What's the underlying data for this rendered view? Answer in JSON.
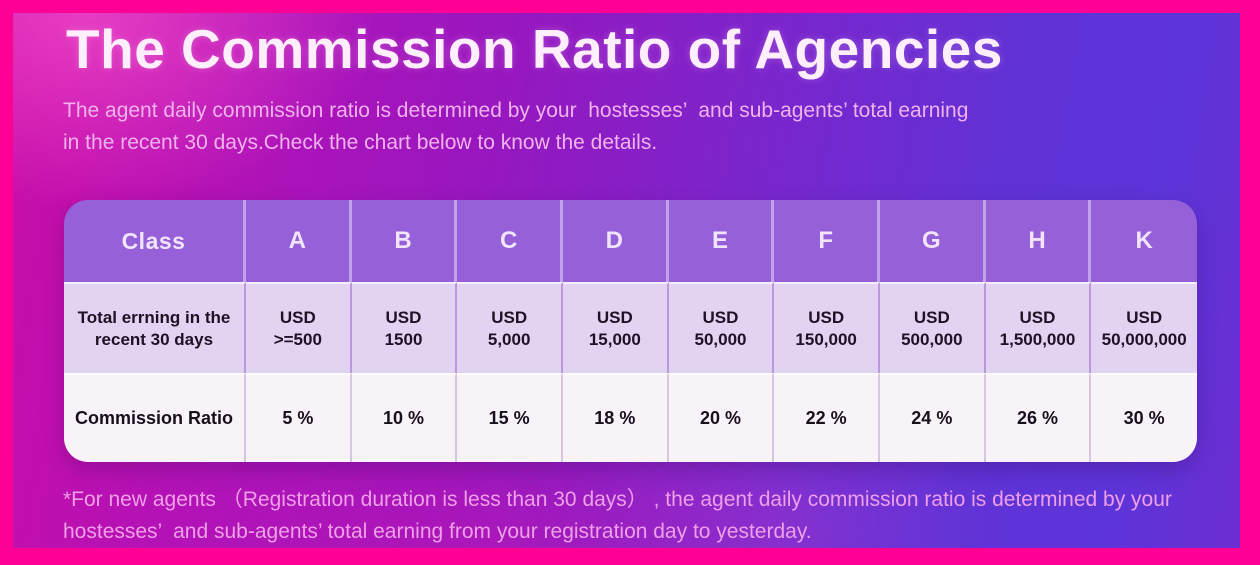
{
  "page": {
    "title": "The Commission Ratio of Agencies",
    "subtitle_line1": "The agent daily commission ratio is determined by your  hostesses’  and sub-agents’ total earning",
    "subtitle_line2": "in the recent 30 days.Check the chart below to know the details.",
    "footnote_line1": "*For new agents （Registration duration is less than 30 days） , the agent daily commission ratio is determined by your",
    "footnote_line2": "hostesses’  and sub-agents’ total earning from your registration day to yesterday."
  },
  "table": {
    "header": [
      "Class",
      "A",
      "B",
      "C",
      "D",
      "E",
      "F",
      "G",
      "H",
      "K"
    ],
    "earning_label_line1": "Total errning in the",
    "earning_label_line2": "recent 30 days",
    "earning_currency": "USD",
    "earning_values": [
      ">=500",
      "1500",
      "5,000",
      "15,000",
      "50,000",
      "150,000",
      "500,000",
      "1,500,000",
      "50,000,000"
    ],
    "ratio_label": "Commission Ratio",
    "ratio_values": [
      "5 %",
      "10 %",
      "15 %",
      "18 %",
      "20 %",
      "22 %",
      "24 %",
      "26 %",
      "30 %"
    ]
  },
  "chart_data": {
    "type": "table",
    "title": "The Commission Ratio of Agencies",
    "columns": [
      "Class",
      "A",
      "B",
      "C",
      "D",
      "E",
      "F",
      "G",
      "H",
      "K"
    ],
    "rows": [
      {
        "label": "Total errning in the recent 30 days",
        "values": [
          "USD >=500",
          "USD 1500",
          "USD 5,000",
          "USD 15,000",
          "USD 50,000",
          "USD 150,000",
          "USD 500,000",
          "USD 1,500,000",
          "USD 50,000,000"
        ]
      },
      {
        "label": "Commission Ratio",
        "values": [
          "5 %",
          "10 %",
          "15 %",
          "18 %",
          "20 %",
          "22 %",
          "24 %",
          "26 %",
          "30 %"
        ]
      }
    ]
  },
  "colors": {
    "frame_pink": "#ff0097",
    "background_magenta": "#ad13b9",
    "background_violet": "#5d34d8",
    "header_purple": "#9560d8",
    "row_lavender": "#e3d3f2",
    "row_white": "#f8f2f9",
    "title_text": "#ffeffd",
    "subtitle_text": "#f0b2ec",
    "footnote_text": "#ef9fe7",
    "dark_text": "#1e1224"
  }
}
